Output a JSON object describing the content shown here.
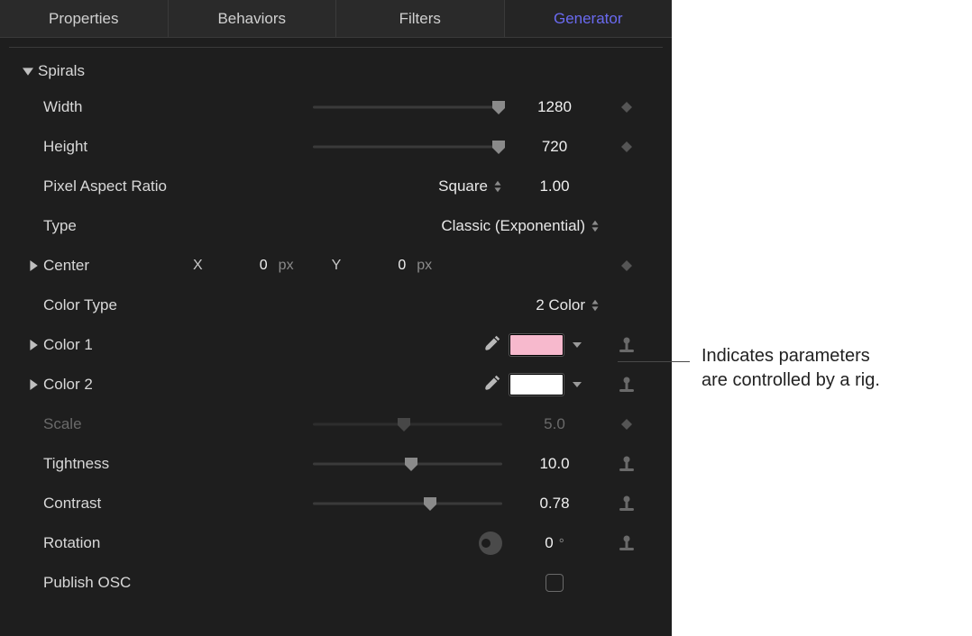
{
  "tabs": {
    "properties": "Properties",
    "behaviors": "Behaviors",
    "filters": "Filters",
    "generator": "Generator",
    "active": "generator"
  },
  "section": {
    "title": "Spirals"
  },
  "params": {
    "width": {
      "label": "Width",
      "value": "1280",
      "slider_pct": 98,
      "kf": "diamond"
    },
    "height": {
      "label": "Height",
      "value": "720",
      "slider_pct": 98,
      "kf": "diamond"
    },
    "par": {
      "label": "Pixel Aspect Ratio",
      "menu": "Square",
      "value": "1.00"
    },
    "type": {
      "label": "Type",
      "menu": "Classic (Exponential)"
    },
    "center": {
      "label": "Center",
      "x_label": "X",
      "x_value": "0",
      "x_unit": "px",
      "y_label": "Y",
      "y_value": "0",
      "y_unit": "px",
      "kf": "diamond"
    },
    "color_type": {
      "label": "Color Type",
      "menu": "2 Color"
    },
    "color1": {
      "label": "Color 1",
      "swatch": "#f7b9cd",
      "kf": "rig"
    },
    "color2": {
      "label": "Color 2",
      "swatch": "#ffffff",
      "kf": "rig"
    },
    "scale": {
      "label": "Scale",
      "value": "5.0",
      "slider_pct": 48,
      "kf": "diamond",
      "dim": true
    },
    "tightness": {
      "label": "Tightness",
      "value": "10.0",
      "slider_pct": 52,
      "kf": "rig"
    },
    "contrast": {
      "label": "Contrast",
      "value": "0.78",
      "slider_pct": 62,
      "kf": "rig"
    },
    "rotation": {
      "label": "Rotation",
      "value": "0",
      "unit": "°",
      "kf": "rig"
    },
    "publish_osc": {
      "label": "Publish OSC",
      "checked": false
    }
  },
  "colors": {
    "panel_bg": "#1e1e1e",
    "tab_bg": "#2a2a2a",
    "text": "#d8d8d8",
    "active_tab": "#6a6af0"
  },
  "annotation": {
    "line1": "Indicates parameters",
    "line2": "are controlled by a rig."
  }
}
